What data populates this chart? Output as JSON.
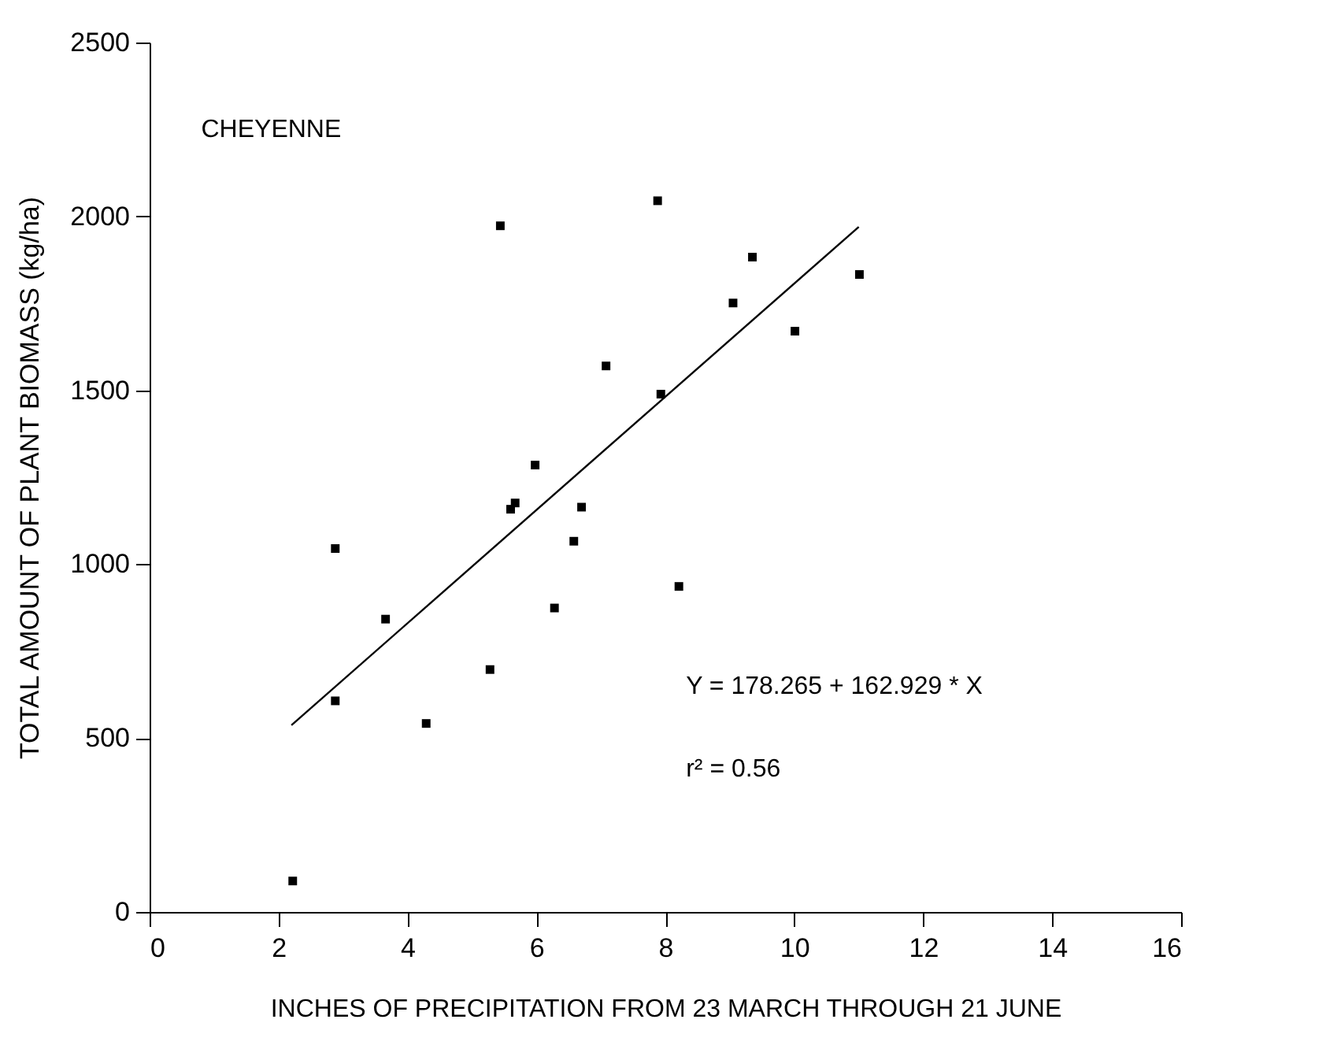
{
  "chart_data": {
    "type": "scatter",
    "xlabel": "INCHES OF PRECIPITATION FROM 23 MARCH THROUGH 21 JUNE",
    "ylabel": "TOTAL AMOUNT OF PLANT BIOMASS (kg/ha)",
    "xlim": [
      0,
      16
    ],
    "xticks": [
      0,
      2,
      4,
      6,
      8,
      10,
      12,
      14,
      16
    ],
    "ylim": [
      0,
      2500
    ],
    "yticks": [
      0,
      500,
      1000,
      1500,
      2000,
      2500
    ],
    "grid": false,
    "marker": "square",
    "annotations": [
      "CHEYENNE",
      "Y =  178.265 + 162.929 * X",
      "r² = 0.56"
    ],
    "series": [
      {
        "color": "#000000",
        "x": [
          2.22,
          2.88,
          2.88,
          3.66,
          4.29,
          5.28,
          6.28,
          6.58,
          8.21,
          5.6,
          5.67,
          5.98,
          6.7,
          7.08,
          7.93,
          5.44,
          7.88,
          9.05,
          9.35,
          10.01,
          11.01
        ],
        "values": [
          89,
          1045,
          607,
          842,
          542,
          697,
          874,
          1066,
          936,
          1158,
          1176,
          1285,
          1164,
          1570,
          1489,
          1973,
          2045,
          1751,
          1883,
          1670,
          1833
        ]
      },
      {
        "type": "line",
        "color": "#000000",
        "marker": "none",
        "x": [
          2.2,
          11
        ],
        "values": [
          537,
          1970
        ]
      }
    ]
  }
}
